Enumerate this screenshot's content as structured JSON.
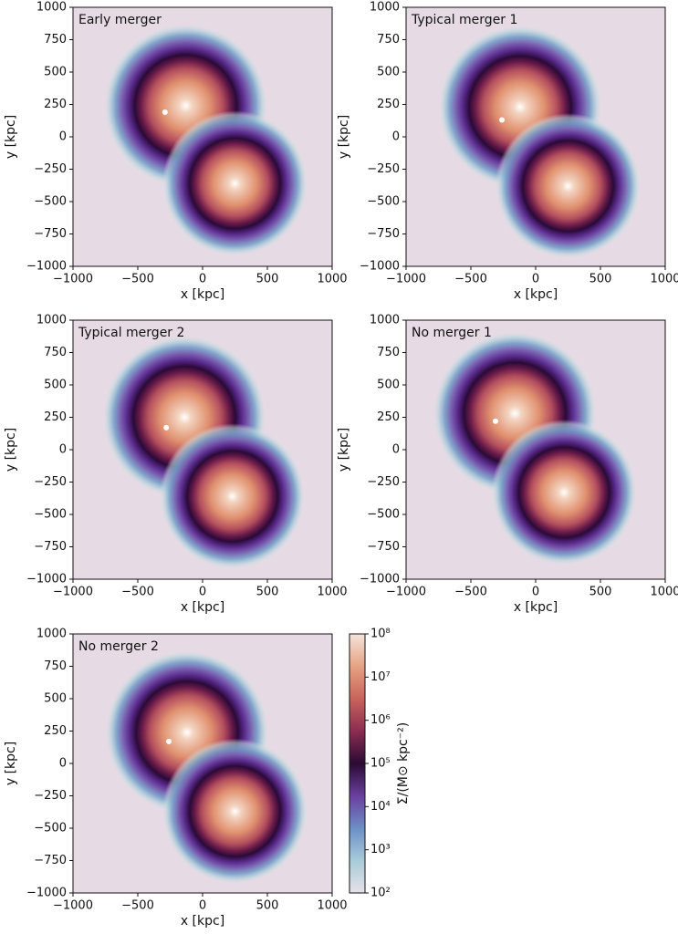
{
  "chart_data": [
    {
      "type": "heatmap",
      "title": "Early merger",
      "xlabel": "x [kpc]",
      "ylabel": "y [kpc]",
      "xlim": [
        -1000,
        1000
      ],
      "ylim": [
        -1000,
        1000
      ],
      "xticks": [
        {
          "value": -1000,
          "label": "−1000"
        },
        {
          "value": -500,
          "label": "−500"
        },
        0,
        500,
        1000
      ],
      "yticks": [
        {
          "value": -1000,
          "label": "−1000"
        },
        {
          "value": -750,
          "label": "−750"
        },
        {
          "value": -500,
          "label": "−500"
        },
        {
          "value": -250,
          "label": "−250"
        },
        0,
        250,
        500,
        750,
        1000
      ],
      "x": [
        -130,
        250,
        -290
      ],
      "y": [
        240,
        -360,
        190
      ]
    },
    {
      "type": "heatmap",
      "title": "Typical merger 1",
      "xlabel": "x [kpc]",
      "ylabel": "y [kpc]",
      "xlim": [
        -1000,
        1000
      ],
      "ylim": [
        -1000,
        1000
      ],
      "xticks": [
        {
          "value": -1000,
          "label": "−1000"
        },
        {
          "value": -500,
          "label": "−500"
        },
        0,
        500,
        1000
      ],
      "yticks": [
        {
          "value": -1000,
          "label": "−1000"
        },
        {
          "value": -750,
          "label": "−750"
        },
        {
          "value": -500,
          "label": "−500"
        },
        {
          "value": -250,
          "label": "−250"
        },
        0,
        250,
        500,
        750,
        1000
      ],
      "x": [
        -120,
        250,
        -260
      ],
      "y": [
        230,
        -380,
        130
      ]
    },
    {
      "type": "heatmap",
      "title": "Typical merger 2",
      "xlabel": "x [kpc]",
      "ylabel": "y [kpc]",
      "xlim": [
        -1000,
        1000
      ],
      "ylim": [
        -1000,
        1000
      ],
      "xticks": [
        {
          "value": -1000,
          "label": "−1000"
        },
        {
          "value": -500,
          "label": "−500"
        },
        0,
        500,
        1000
      ],
      "yticks": [
        {
          "value": -1000,
          "label": "−1000"
        },
        {
          "value": -750,
          "label": "−750"
        },
        {
          "value": -500,
          "label": "−500"
        },
        {
          "value": -250,
          "label": "−250"
        },
        0,
        250,
        500,
        750,
        1000
      ],
      "x": [
        -140,
        230,
        -280
      ],
      "y": [
        250,
        -360,
        170
      ]
    },
    {
      "type": "heatmap",
      "title": "No merger 1",
      "xlabel": "x [kpc]",
      "ylabel": "y [kpc]",
      "xlim": [
        -1000,
        1000
      ],
      "ylim": [
        -1000,
        1000
      ],
      "xticks": [
        {
          "value": -1000,
          "label": "−1000"
        },
        {
          "value": -500,
          "label": "−500"
        },
        0,
        500,
        1000
      ],
      "yticks": [
        {
          "value": -1000,
          "label": "−1000"
        },
        {
          "value": -750,
          "label": "−750"
        },
        {
          "value": -500,
          "label": "−500"
        },
        {
          "value": -250,
          "label": "−250"
        },
        0,
        250,
        500,
        750,
        1000
      ],
      "x": [
        -160,
        220,
        -310
      ],
      "y": [
        280,
        -330,
        220
      ]
    },
    {
      "type": "heatmap",
      "title": "No merger 2",
      "xlabel": "x [kpc]",
      "ylabel": "y [kpc]",
      "xlim": [
        -1000,
        1000
      ],
      "ylim": [
        -1000,
        1000
      ],
      "xticks": [
        {
          "value": -1000,
          "label": "−1000"
        },
        {
          "value": -500,
          "label": "−500"
        },
        0,
        500,
        1000
      ],
      "yticks": [
        {
          "value": -1000,
          "label": "−1000"
        },
        {
          "value": -750,
          "label": "−750"
        },
        {
          "value": -500,
          "label": "−500"
        },
        {
          "value": -250,
          "label": "−250"
        },
        0,
        250,
        500,
        750,
        1000
      ],
      "x": [
        -120,
        250,
        -260
      ],
      "y": [
        240,
        -370,
        170
      ]
    },
    {
      "type": "colorbar",
      "label": "Σ/(M⊙ kpc⁻²)",
      "log": true,
      "ylim": [
        100,
        100000000
      ],
      "yticks": [
        {
          "value": 100,
          "label": "10²"
        },
        {
          "value": 1000,
          "label": "10³"
        },
        {
          "value": 10000,
          "label": "10⁴"
        },
        {
          "value": 100000,
          "label": "10⁵"
        },
        {
          "value": 1000000,
          "label": "10⁶"
        },
        {
          "value": 10000000,
          "label": "10⁷"
        },
        {
          "value": 100000000,
          "label": "10⁸"
        }
      ],
      "colors": [
        "#e6e1e8",
        "#a9cbd8",
        "#6c8fc6",
        "#6a3f9e",
        "#2a0b33",
        "#8b2d52",
        "#c7645c",
        "#e6a283",
        "#f4e4dc"
      ]
    }
  ]
}
